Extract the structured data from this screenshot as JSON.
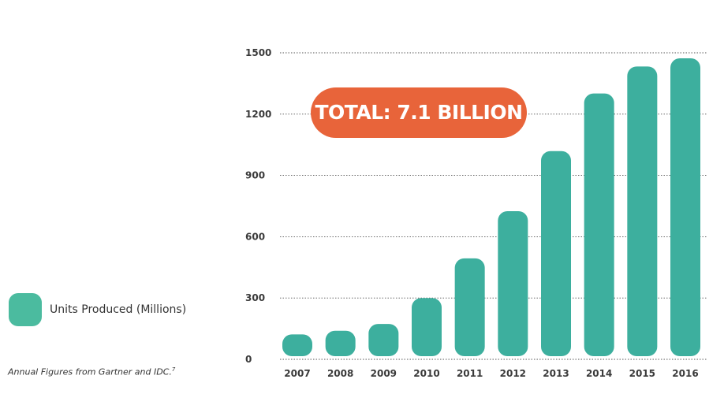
{
  "chart_data": {
    "type": "bar",
    "categories": [
      "2007",
      "2008",
      "2009",
      "2010",
      "2011",
      "2012",
      "2013",
      "2014",
      "2015",
      "2016"
    ],
    "series": [
      {
        "name": "Units Produced (Millions)",
        "values": [
          122,
          140,
          173,
          300,
          494,
          725,
          1019,
          1301,
          1433,
          1473
        ]
      }
    ],
    "yticks": [
      0,
      300,
      600,
      900,
      1200,
      1500
    ],
    "ylim": [
      0,
      1500
    ],
    "grid": true,
    "bar_color": "#3daf9e",
    "annotation": "TOTAL: 7.1 BILLION",
    "legend_position": "bottom-left"
  },
  "legend": {
    "label": "Units Produced (Millions)",
    "color": "#4bbb9f"
  },
  "source": {
    "text": "Annual Figures from Gartner and IDC.",
    "footnote": "7"
  },
  "badge": {
    "text": "TOTAL: 7.1 BILLION",
    "color": "#e8643a"
  }
}
